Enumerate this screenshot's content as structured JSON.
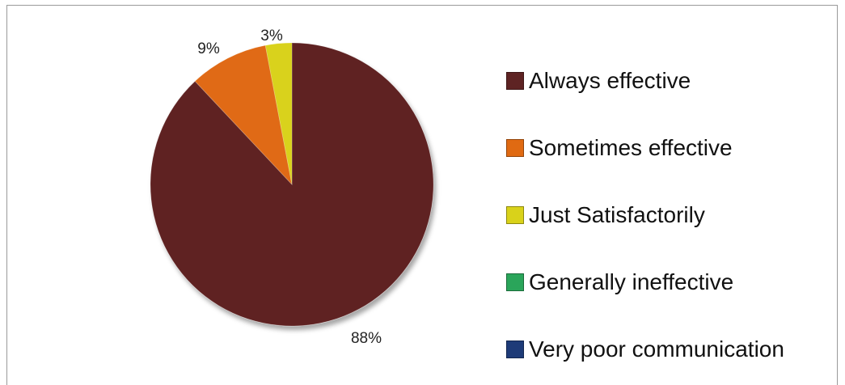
{
  "chart_data": {
    "type": "pie",
    "title": "",
    "categories": [
      "Always effective",
      "Sometimes effective",
      "Just Satisfactorily",
      "Generally ineffective",
      "Very poor communication"
    ],
    "values": [
      88,
      9,
      3,
      0,
      0
    ],
    "data_labels": [
      "88%",
      "9%",
      "3%",
      "",
      ""
    ],
    "colors": [
      "#5e2323",
      "#e06a12",
      "#d9d21a",
      "#2aa55a",
      "#1e3b78"
    ],
    "legend_position": "right",
    "start_angle": "top",
    "direction": "clockwise"
  }
}
